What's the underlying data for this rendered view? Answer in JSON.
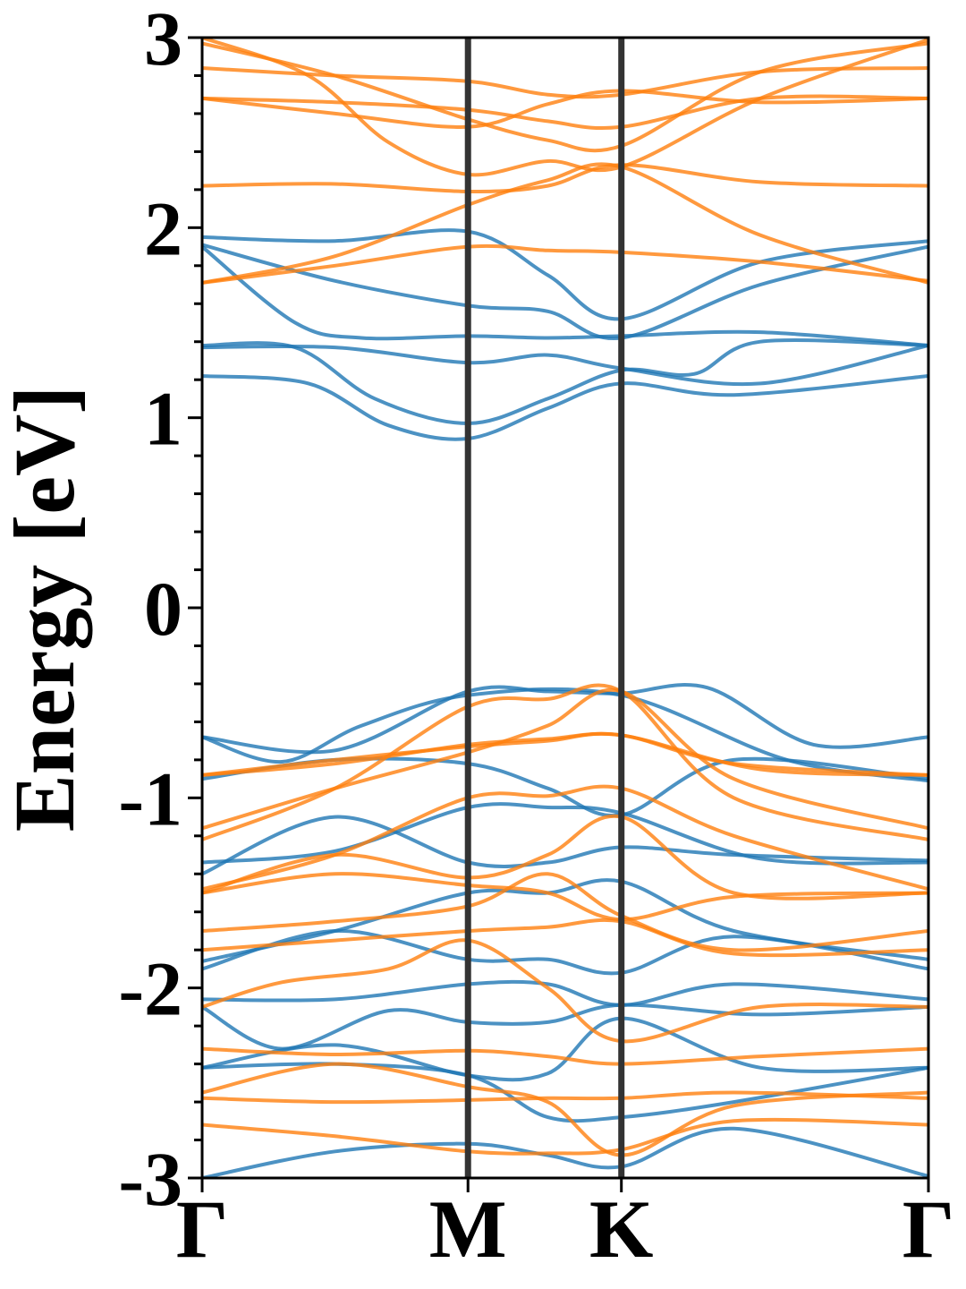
{
  "chart_data": {
    "type": "line",
    "title": "",
    "xlabel": "",
    "ylabel": "Energy [eV]",
    "ylim": [
      -3,
      3
    ],
    "yticks": [
      3,
      2,
      1,
      0,
      -1,
      -2,
      -3
    ],
    "yticks_labels": [
      "3",
      "2",
      "1",
      "0",
      "-1",
      "-2",
      "-3"
    ],
    "y_minor_step": 0.2,
    "x_kpoints": [
      {
        "label": "Γ",
        "x": 0.0
      },
      {
        "label": "M",
        "x": 1.0
      },
      {
        "label": "K",
        "x": 1.577
      },
      {
        "label": "Γ",
        "x": 2.732
      }
    ],
    "xlim": [
      0.0,
      2.732
    ],
    "grid": false,
    "legend": "none",
    "colors": {
      "spin_up": "#1f77b4",
      "spin_down": "#ff7f0e",
      "kpath_lines": "#333333"
    },
    "series": [
      {
        "spin": "up",
        "x": [
          0,
          0.5,
          1.0,
          1.3,
          1.577,
          2.1,
          2.732
        ],
        "y": [
          1.95,
          1.93,
          1.98,
          1.75,
          1.52,
          1.82,
          1.93
        ]
      },
      {
        "spin": "up",
        "x": [
          0,
          0.5,
          1.0,
          1.3,
          1.577,
          2.1,
          2.732
        ],
        "y": [
          1.91,
          1.72,
          1.59,
          1.56,
          1.42,
          1.7,
          1.9
        ]
      },
      {
        "spin": "up",
        "x": [
          0,
          0.35,
          0.6,
          1.0,
          1.3,
          1.577,
          2.1,
          2.732
        ],
        "y": [
          1.9,
          1.5,
          1.42,
          1.43,
          1.42,
          1.43,
          1.45,
          1.38
        ]
      },
      {
        "spin": "up",
        "x": [
          0,
          0.5,
          1.0,
          1.3,
          1.577,
          2.1,
          2.732
        ],
        "y": [
          1.37,
          1.37,
          1.29,
          1.33,
          1.26,
          1.18,
          1.38
        ]
      },
      {
        "spin": "up",
        "x": [
          0,
          0.35,
          0.65,
          1.0,
          1.3,
          1.577,
          1.85,
          2.1,
          2.732
        ],
        "y": [
          1.38,
          1.37,
          1.1,
          0.97,
          1.1,
          1.25,
          1.23,
          1.4,
          1.38
        ]
      },
      {
        "spin": "up",
        "x": [
          0,
          0.4,
          0.7,
          1.0,
          1.3,
          1.577,
          2.0,
          2.732
        ],
        "y": [
          1.22,
          1.18,
          0.96,
          0.89,
          1.05,
          1.18,
          1.12,
          1.22
        ]
      },
      {
        "spin": "up",
        "x": [
          0,
          0.5,
          1.0,
          1.3,
          1.577,
          1.9,
          2.3,
          2.732
        ],
        "y": [
          -0.68,
          -0.75,
          -0.44,
          -0.44,
          -0.45,
          -0.42,
          -0.72,
          -0.68
        ]
      },
      {
        "spin": "up",
        "x": [
          0,
          0.3,
          0.6,
          1.0,
          1.577,
          2.2,
          2.732
        ],
        "y": [
          -0.68,
          -0.81,
          -0.62,
          -0.46,
          -0.46,
          -0.8,
          -0.91
        ]
      },
      {
        "spin": "up",
        "x": [
          0,
          0.5,
          1.0,
          1.3,
          1.577,
          2.0,
          2.732
        ],
        "y": [
          -0.9,
          -0.8,
          -0.82,
          -0.95,
          -1.09,
          -0.8,
          -0.9
        ]
      },
      {
        "spin": "up",
        "x": [
          0,
          0.5,
          1.0,
          1.3,
          1.577,
          2.1,
          2.732
        ],
        "y": [
          -1.34,
          -1.28,
          -1.05,
          -1.05,
          -1.08,
          -1.32,
          -1.34
        ]
      },
      {
        "spin": "up",
        "x": [
          0,
          0.5,
          1.0,
          1.3,
          1.577,
          2.0,
          2.732
        ],
        "y": [
          -1.4,
          -1.1,
          -1.34,
          -1.34,
          -1.26,
          -1.3,
          -1.33
        ]
      },
      {
        "spin": "up",
        "x": [
          0,
          0.5,
          1.0,
          1.3,
          1.577,
          2.0,
          2.732
        ],
        "y": [
          -1.86,
          -1.7,
          -1.5,
          -1.5,
          -1.44,
          -1.7,
          -1.85
        ]
      },
      {
        "spin": "up",
        "x": [
          0,
          0.5,
          1.0,
          1.3,
          1.577,
          2.0,
          2.732
        ],
        "y": [
          -1.9,
          -1.7,
          -1.85,
          -1.85,
          -1.92,
          -1.73,
          -1.9
        ]
      },
      {
        "spin": "up",
        "x": [
          0,
          0.5,
          1.0,
          1.3,
          1.577,
          2.0,
          2.732
        ],
        "y": [
          -2.06,
          -2.06,
          -1.98,
          -1.98,
          -2.09,
          -1.98,
          -2.06
        ]
      },
      {
        "spin": "up",
        "x": [
          0,
          0.3,
          0.7,
          1.0,
          1.3,
          1.577,
          2.1,
          2.732
        ],
        "y": [
          -2.1,
          -2.32,
          -2.12,
          -2.18,
          -2.18,
          -2.09,
          -2.14,
          -2.1
        ]
      },
      {
        "spin": "up",
        "x": [
          0,
          0.5,
          1.0,
          1.3,
          1.577,
          2.1,
          2.732
        ],
        "y": [
          -2.42,
          -2.3,
          -2.46,
          -2.45,
          -2.16,
          -2.42,
          -2.42
        ]
      },
      {
        "spin": "up",
        "x": [
          0,
          0.5,
          1.0,
          1.3,
          1.577,
          2.0,
          2.732
        ],
        "y": [
          -2.42,
          -2.4,
          -2.46,
          -2.68,
          -2.68,
          -2.6,
          -2.42
        ]
      },
      {
        "spin": "up",
        "x": [
          0,
          0.5,
          1.0,
          1.3,
          1.577,
          2.0,
          2.732
        ],
        "y": [
          -3.0,
          -2.86,
          -2.82,
          -2.88,
          -2.94,
          -2.74,
          -2.99
        ]
      },
      {
        "spin": "down",
        "x": [
          0,
          0.5,
          1.0,
          1.3,
          1.577,
          2.1,
          2.732
        ],
        "y": [
          2.84,
          2.8,
          2.77,
          2.7,
          2.7,
          2.82,
          2.84
        ]
      },
      {
        "spin": "down",
        "x": [
          0,
          0.5,
          1.0,
          1.3,
          1.577,
          2.1,
          2.732
        ],
        "y": [
          2.68,
          2.66,
          2.62,
          2.56,
          2.53,
          2.68,
          2.68
        ]
      },
      {
        "spin": "down",
        "x": [
          0,
          0.5,
          1.0,
          1.3,
          1.577,
          2.1,
          2.732
        ],
        "y": [
          2.68,
          2.6,
          2.53,
          2.65,
          2.72,
          2.66,
          2.68
        ]
      },
      {
        "spin": "down",
        "x": [
          0,
          0.5,
          1.0,
          1.3,
          1.577,
          2.1,
          2.732
        ],
        "y": [
          2.97,
          2.8,
          2.57,
          2.46,
          2.43,
          2.82,
          2.97
        ]
      },
      {
        "spin": "down",
        "x": [
          0,
          0.4,
          0.7,
          1.0,
          1.3,
          1.577,
          2.1,
          2.732
        ],
        "y": [
          3.0,
          2.8,
          2.45,
          2.28,
          2.35,
          2.32,
          2.68,
          2.99
        ]
      },
      {
        "spin": "down",
        "x": [
          0,
          0.5,
          1.0,
          1.3,
          1.577,
          2.1,
          2.732
        ],
        "y": [
          2.22,
          2.23,
          2.19,
          2.22,
          2.33,
          2.24,
          2.22
        ]
      },
      {
        "spin": "down",
        "x": [
          0,
          0.5,
          1.0,
          1.3,
          1.577,
          2.1,
          2.732
        ],
        "y": [
          1.71,
          1.85,
          2.12,
          2.25,
          2.32,
          1.96,
          1.71
        ]
      },
      {
        "spin": "down",
        "x": [
          0,
          0.5,
          1.0,
          1.3,
          1.577,
          2.1,
          2.732
        ],
        "y": [
          1.71,
          1.8,
          1.9,
          1.88,
          1.87,
          1.82,
          1.72
        ]
      },
      {
        "spin": "down",
        "x": [
          0,
          0.5,
          1.0,
          1.3,
          1.577,
          2.0,
          2.732
        ],
        "y": [
          -0.88,
          -0.82,
          -0.72,
          -0.69,
          -0.67,
          -0.82,
          -0.88
        ]
      },
      {
        "spin": "down",
        "x": [
          0,
          0.5,
          1.0,
          1.3,
          1.577,
          2.1,
          2.732
        ],
        "y": [
          -0.88,
          -0.8,
          -0.73,
          -0.7,
          -0.67,
          -0.85,
          -0.88
        ]
      },
      {
        "spin": "down",
        "x": [
          0,
          0.5,
          1.0,
          1.3,
          1.577,
          2.0,
          2.732
        ],
        "y": [
          -1.16,
          -0.95,
          -0.76,
          -0.62,
          -0.44,
          -0.9,
          -1.16
        ]
      },
      {
        "spin": "down",
        "x": [
          0,
          0.5,
          1.0,
          1.3,
          1.577,
          2.0,
          2.732
        ],
        "y": [
          -1.22,
          -0.95,
          -0.52,
          -0.48,
          -0.44,
          -1.0,
          -1.22
        ]
      },
      {
        "spin": "down",
        "x": [
          0,
          0.5,
          1.0,
          1.3,
          1.577,
          2.0,
          2.732
        ],
        "y": [
          -1.48,
          -1.3,
          -1.0,
          -0.99,
          -0.95,
          -1.2,
          -1.48
        ]
      },
      {
        "spin": "down",
        "x": [
          0,
          0.5,
          1.0,
          1.3,
          1.577,
          2.0,
          2.732
        ],
        "y": [
          -1.5,
          -1.3,
          -1.42,
          -1.3,
          -1.1,
          -1.5,
          -1.5
        ]
      },
      {
        "spin": "down",
        "x": [
          0,
          0.5,
          1.0,
          1.3,
          1.577,
          2.0,
          2.732
        ],
        "y": [
          -1.5,
          -1.4,
          -1.46,
          -1.5,
          -1.64,
          -1.52,
          -1.5
        ]
      },
      {
        "spin": "down",
        "x": [
          0,
          0.5,
          1.0,
          1.3,
          1.577,
          2.0,
          2.732
        ],
        "y": [
          -1.7,
          -1.65,
          -1.57,
          -1.4,
          -1.62,
          -1.8,
          -1.7
        ]
      },
      {
        "spin": "down",
        "x": [
          0,
          0.5,
          1.0,
          1.3,
          1.577,
          2.0,
          2.732
        ],
        "y": [
          -1.8,
          -1.75,
          -1.7,
          -1.68,
          -1.65,
          -1.82,
          -1.8
        ]
      },
      {
        "spin": "down",
        "x": [
          0,
          0.3,
          0.7,
          1.0,
          1.3,
          1.577,
          2.1,
          2.732
        ],
        "y": [
          -2.1,
          -1.97,
          -1.9,
          -1.75,
          -2.0,
          -2.28,
          -2.1,
          -2.1
        ]
      },
      {
        "spin": "down",
        "x": [
          0,
          0.5,
          1.0,
          1.3,
          1.577,
          2.1,
          2.732
        ],
        "y": [
          -2.32,
          -2.35,
          -2.33,
          -2.36,
          -2.4,
          -2.36,
          -2.32
        ]
      },
      {
        "spin": "down",
        "x": [
          0,
          0.5,
          1.0,
          1.3,
          1.577,
          2.0,
          2.732
        ],
        "y": [
          -2.55,
          -2.4,
          -2.52,
          -2.6,
          -2.88,
          -2.62,
          -2.55
        ]
      },
      {
        "spin": "down",
        "x": [
          0,
          0.5,
          1.0,
          1.3,
          1.577,
          2.0,
          2.732
        ],
        "y": [
          -2.58,
          -2.6,
          -2.59,
          -2.58,
          -2.58,
          -2.55,
          -2.58
        ]
      },
      {
        "spin": "down",
        "x": [
          0,
          0.5,
          1.0,
          1.3,
          1.577,
          2.0,
          2.732
        ],
        "y": [
          -2.72,
          -2.78,
          -2.86,
          -2.87,
          -2.85,
          -2.7,
          -2.72
        ]
      }
    ]
  }
}
